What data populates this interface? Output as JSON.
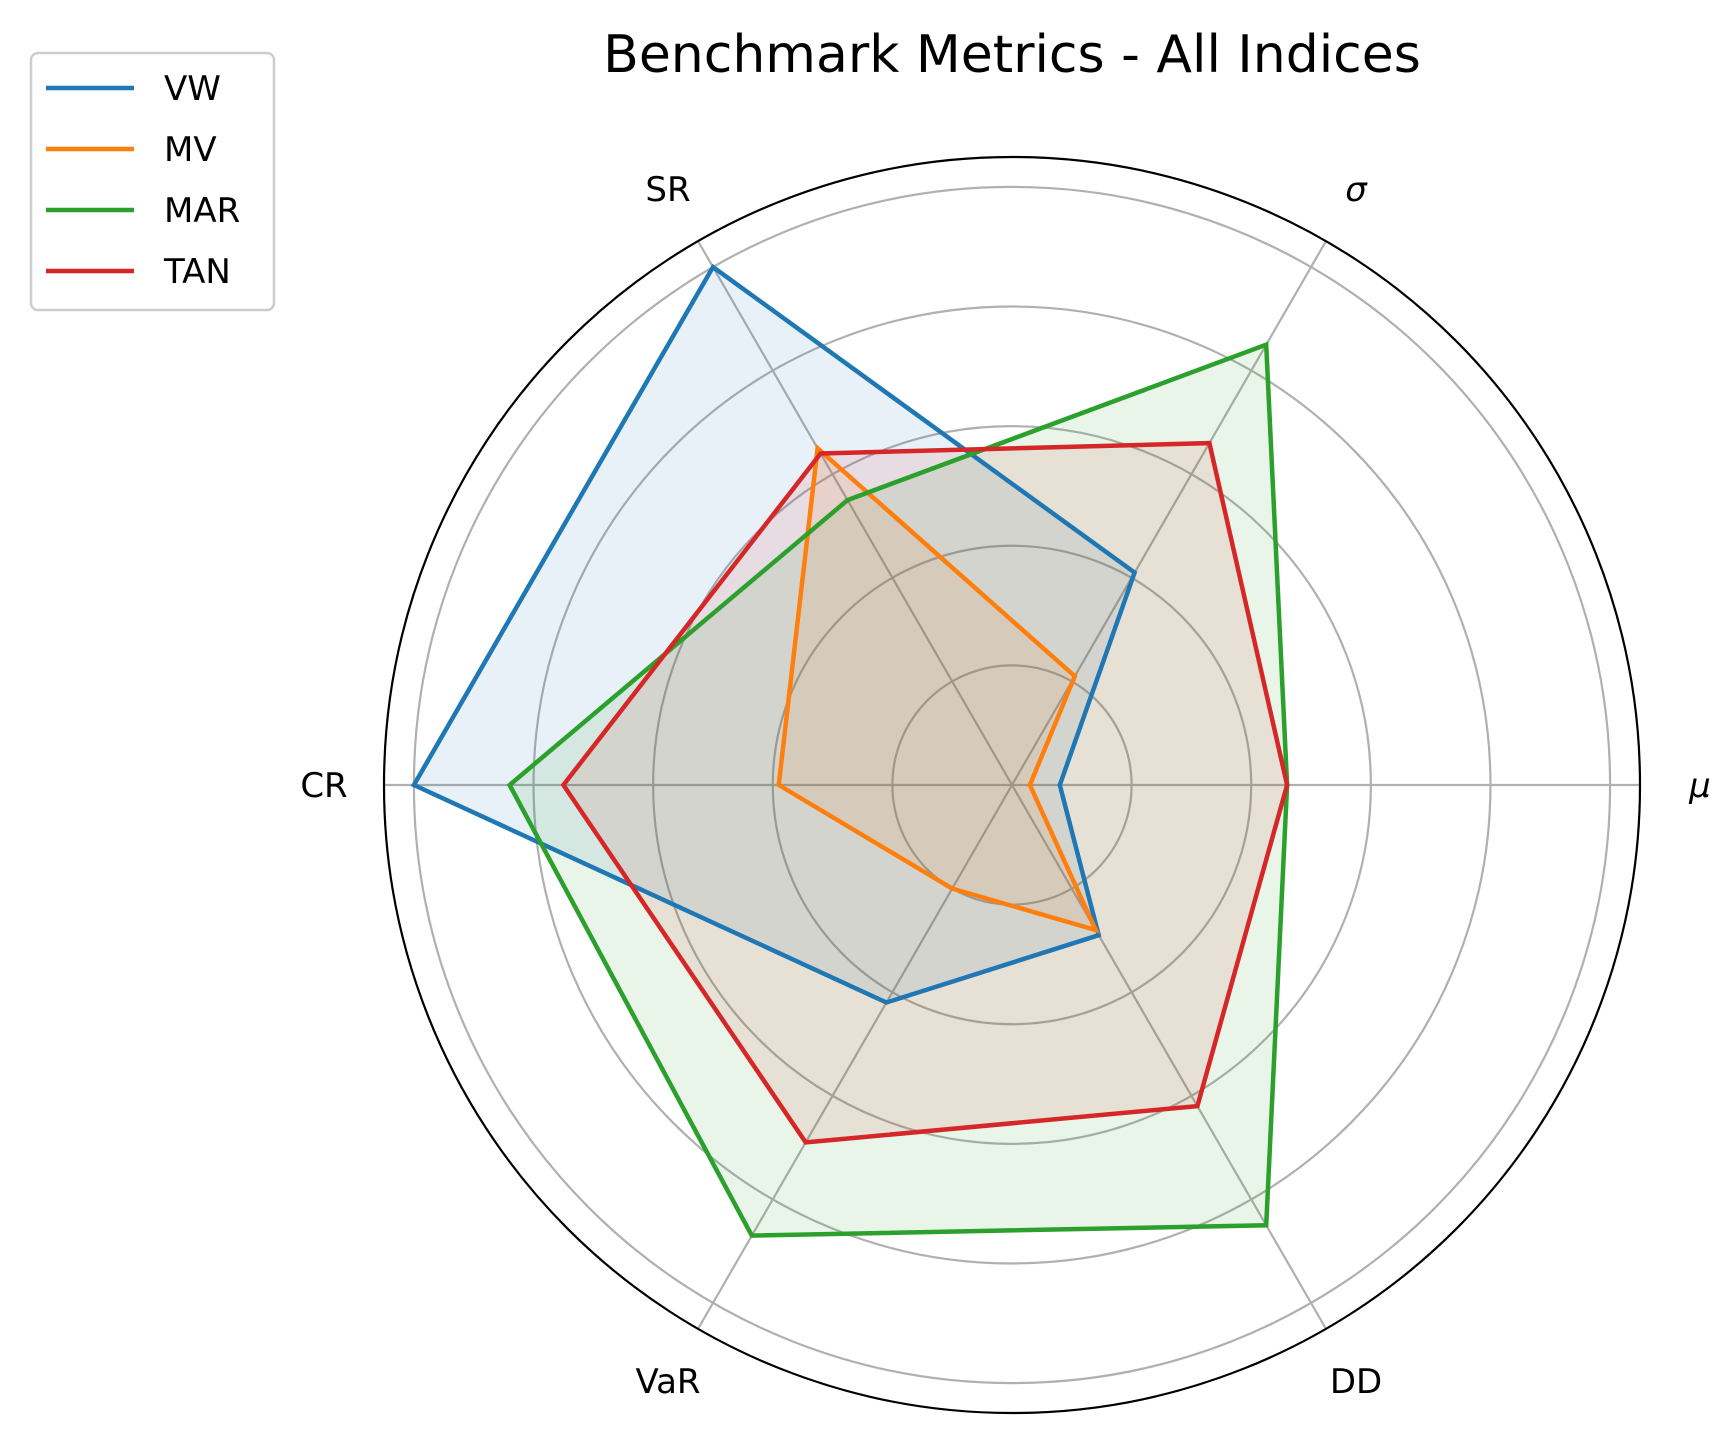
{
  "chart_data": {
    "type": "radar",
    "title": "Benchmark Metrics - All Indices",
    "axes": [
      "μ",
      "σ",
      "SR",
      "CR",
      "VaR",
      "DD"
    ],
    "rlim": [
      0,
      1.05
    ],
    "grid": true,
    "legend_position": "top-left",
    "series": [
      {
        "name": "VW",
        "color": "#1f77b4",
        "values": [
          0.08,
          0.41,
          1.0,
          1.0,
          0.42,
          0.29
        ]
      },
      {
        "name": "MV",
        "color": "#ff7f0e",
        "values": [
          0.03,
          0.21,
          0.65,
          0.39,
          0.2,
          0.28
        ]
      },
      {
        "name": "MAR",
        "color": "#2ca02c",
        "values": [
          0.46,
          0.85,
          0.55,
          0.84,
          0.87,
          0.85
        ]
      },
      {
        "name": "TAN",
        "color": "#d62728",
        "values": [
          0.46,
          0.66,
          0.64,
          0.75,
          0.69,
          0.62
        ]
      }
    ]
  }
}
